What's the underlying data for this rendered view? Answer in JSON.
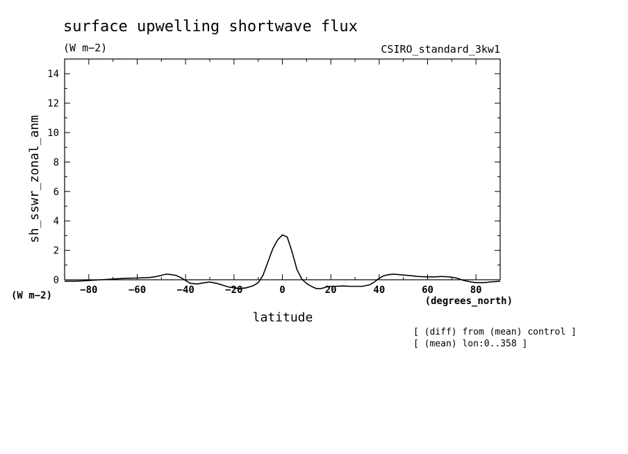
{
  "chart_data": {
    "type": "line",
    "title": "surface upwelling shortwave flux",
    "units": "(W m−2)",
    "dataset": "CSIRO_standard_3kw1",
    "ylabel": "sh_sswr_zonal_anm",
    "yunits": "(W m−2)",
    "xlabel": "latitude",
    "xunits": "(degrees_north)",
    "xlim": [
      -90,
      90
    ],
    "ylim": [
      0,
      15
    ],
    "xticks": [
      -80,
      -60,
      -40,
      -20,
      0,
      20,
      40,
      60,
      80
    ],
    "yticks": [
      0,
      2,
      4,
      6,
      8,
      10,
      12,
      14
    ],
    "xtick_labels": [
      "−80",
      "−60",
      "−40",
      "−20",
      "0",
      "20",
      "40",
      "60",
      "80"
    ],
    "ytick_labels": [
      "0",
      "2",
      "4",
      "6",
      "8",
      "10",
      "12",
      "14"
    ],
    "notes": [
      "[ (diff) from (mean) control ]",
      "[ (mean) lon:0..358 ]"
    ],
    "grid": false,
    "series": [
      {
        "x": [
          -90,
          -85,
          -80,
          -75,
          -70,
          -65,
          -60,
          -55,
          -52,
          -50,
          -48,
          -46,
          -44,
          -42,
          -40,
          -38,
          -35,
          -32,
          -30,
          -27,
          -24,
          -22,
          -20,
          -18,
          -15,
          -12,
          -10,
          -8,
          -6,
          -4,
          -2,
          0,
          2,
          4,
          6,
          8,
          10,
          12,
          14,
          16,
          18,
          20,
          22,
          25,
          28,
          30,
          33,
          36,
          38,
          40,
          42,
          44,
          46,
          48,
          50,
          53,
          56,
          60,
          63,
          66,
          69,
          72,
          75,
          78,
          80,
          83,
          86,
          90
        ],
        "y": [
          -0.1,
          -0.1,
          -0.05,
          0.0,
          0.05,
          0.1,
          0.12,
          0.15,
          0.22,
          0.3,
          0.38,
          0.35,
          0.3,
          0.15,
          -0.05,
          -0.25,
          -0.28,
          -0.2,
          -0.15,
          -0.25,
          -0.4,
          -0.5,
          -0.55,
          -0.6,
          -0.55,
          -0.4,
          -0.2,
          0.3,
          1.2,
          2.1,
          2.7,
          3.05,
          2.9,
          1.9,
          0.7,
          0.05,
          -0.25,
          -0.45,
          -0.6,
          -0.6,
          -0.5,
          -0.45,
          -0.45,
          -0.42,
          -0.45,
          -0.45,
          -0.45,
          -0.35,
          -0.15,
          0.1,
          0.28,
          0.35,
          0.38,
          0.35,
          0.32,
          0.28,
          0.22,
          0.2,
          0.2,
          0.22,
          0.2,
          0.12,
          -0.05,
          -0.15,
          -0.2,
          -0.2,
          -0.15,
          -0.1
        ]
      }
    ]
  }
}
